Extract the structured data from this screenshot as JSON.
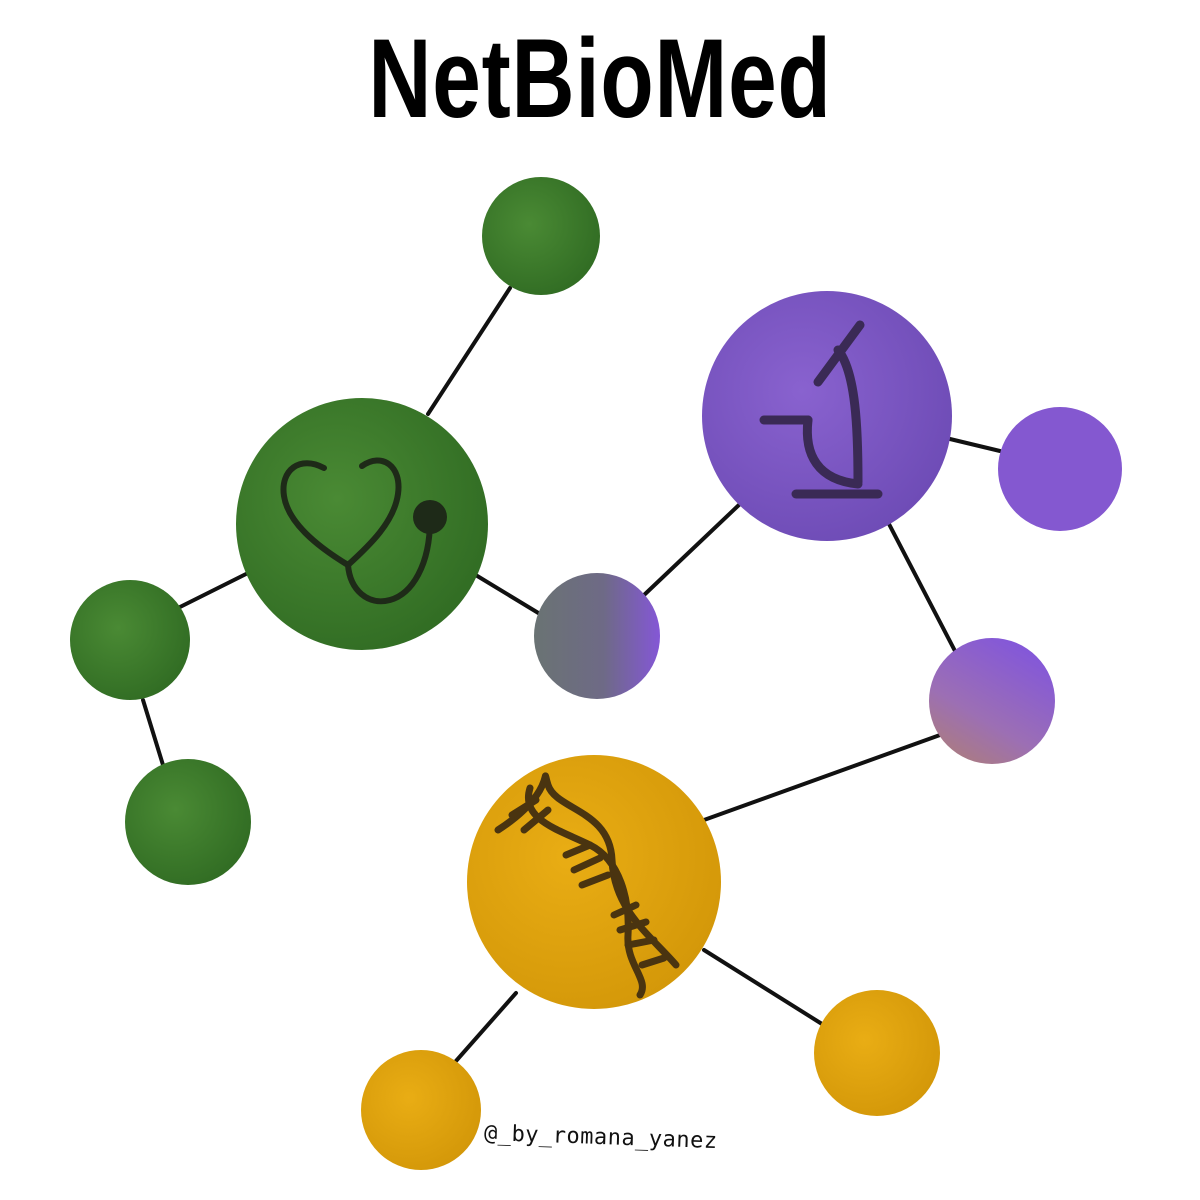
{
  "header": {
    "title": "NetBioMed"
  },
  "footer": {
    "credit": "@_by_romana_yanez"
  },
  "colors": {
    "green": "#3c7b2a",
    "purple": "#7a55c2",
    "purple_light": "#8460d4",
    "gold": "#e0a30c",
    "gray_purple": "#6f6f86",
    "mauve": "#a06fb6",
    "edge": "#111111",
    "icon": "#2a2a2a"
  },
  "network": {
    "hubs": [
      {
        "id": "medicine-hub",
        "icon": "stethoscope-icon"
      },
      {
        "id": "research-hub",
        "icon": "microscope-icon"
      },
      {
        "id": "genomics-hub",
        "icon": "dna-icon"
      }
    ]
  }
}
